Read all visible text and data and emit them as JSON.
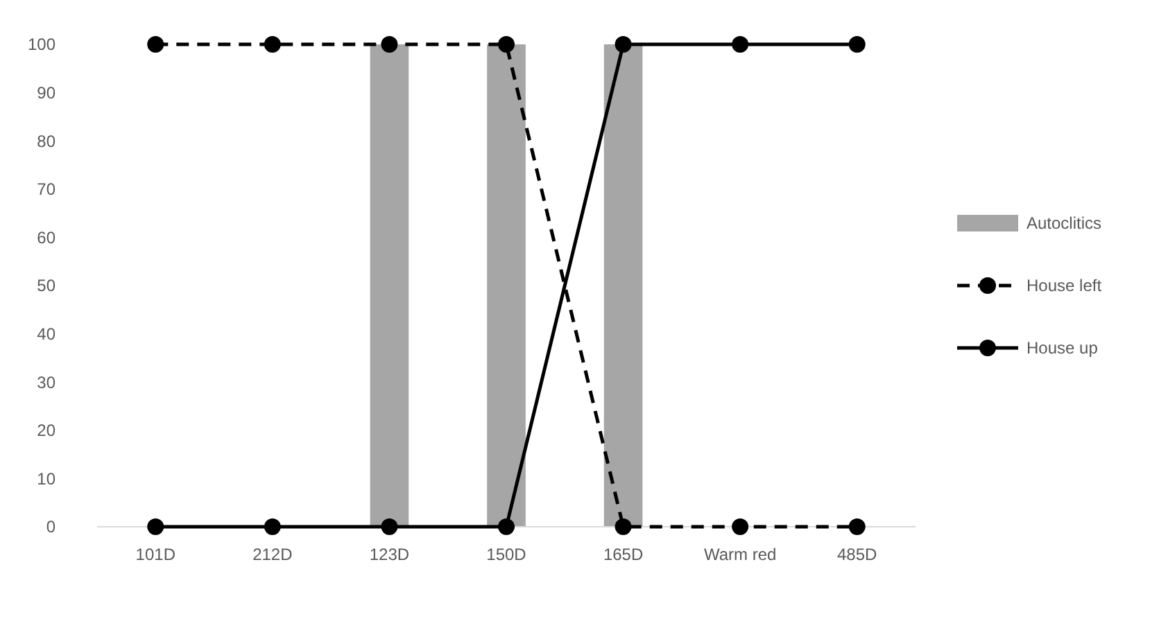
{
  "chart_data": {
    "type": "bar",
    "categories": [
      "101D",
      "212D",
      "123D",
      "150D",
      "165D",
      "Warm red",
      "485D"
    ],
    "series": [
      {
        "name": "Autoclitics",
        "color": "#a6a6a6",
        "values": [
          0,
          0,
          100,
          100,
          100,
          0,
          0
        ]
      },
      {
        "name": "House left",
        "type": "line",
        "color": "#000000",
        "line_style": "dashed",
        "marker": "circle",
        "values": [
          100,
          100,
          100,
          100,
          0,
          0,
          0
        ]
      },
      {
        "name": "House up",
        "type": "line",
        "color": "#000000",
        "line_style": "solid",
        "marker": "circle",
        "values": [
          0,
          0,
          0,
          0,
          100,
          100,
          100
        ]
      }
    ],
    "ylim": [
      0,
      100
    ],
    "yticks": [
      0,
      10,
      20,
      30,
      40,
      50,
      60,
      70,
      80,
      90,
      100
    ],
    "grid": false,
    "legend": "right"
  }
}
